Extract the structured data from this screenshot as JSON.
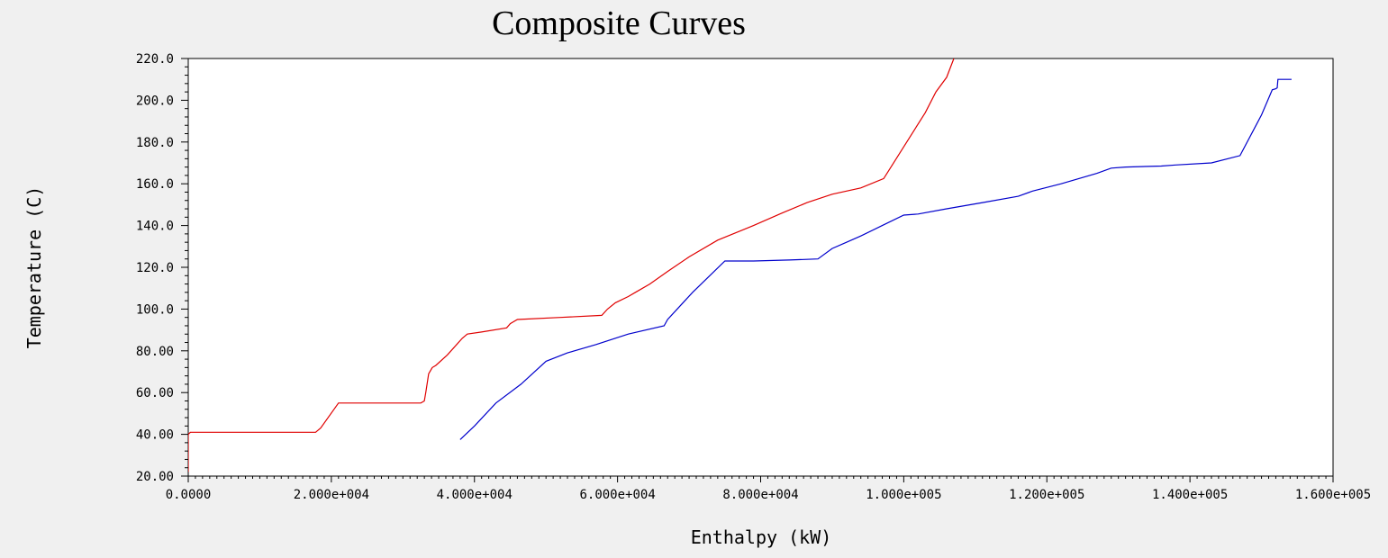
{
  "chart_data": {
    "type": "line",
    "title": "Composite Curves",
    "xlabel": "Enthalpy (kW)",
    "ylabel": "Temperature (C)",
    "xlim": [
      0,
      160000
    ],
    "ylim": [
      20,
      220
    ],
    "x_ticks": [
      0,
      20000,
      40000,
      60000,
      80000,
      100000,
      120000,
      140000,
      160000
    ],
    "x_tick_labels": [
      "0.0000",
      "2.000e+004",
      "4.000e+004",
      "6.000e+004",
      "8.000e+004",
      "1.000e+005",
      "1.200e+005",
      "1.400e+005",
      "1.600e+005"
    ],
    "y_ticks": [
      20,
      40,
      60,
      80,
      100,
      120,
      140,
      160,
      180,
      200,
      220
    ],
    "y_tick_labels": [
      "20.00",
      "40.00",
      "60.00",
      "80.00",
      "100.0",
      "120.0",
      "140.0",
      "160.0",
      "180.0",
      "200.0",
      "220.0"
    ],
    "grid": false,
    "series": [
      {
        "color": "#e00000",
        "x": [
          0,
          0,
          300,
          12000,
          17800,
          18500,
          21000,
          27000,
          32500,
          33000,
          33200,
          33600,
          34100,
          34600,
          36200,
          38300,
          39000,
          41000,
          44500,
          45000,
          46000,
          52000,
          57800,
          58600,
          59700,
          61500,
          62500,
          64500,
          67000,
          70000,
          74000,
          79000,
          83000,
          86500,
          90000,
          94000,
          97200,
          103000,
          104500,
          106000,
          107000
        ],
        "y": [
          22,
          40,
          41,
          41,
          41,
          43,
          55,
          55,
          55,
          56,
          60,
          69,
          72,
          73,
          78,
          86,
          88,
          89,
          91,
          93,
          95,
          96,
          97,
          100,
          103,
          106,
          108,
          112,
          118,
          125,
          133,
          140,
          146,
          151,
          155,
          158,
          162.5,
          194,
          204,
          211,
          220
        ]
      },
      {
        "color": "#0000cc",
        "x": [
          38000,
          40000,
          43000,
          46500,
          50000,
          53000,
          57000,
          61500,
          66500,
          67000,
          70500,
          75000,
          79000,
          84000,
          88000,
          90000,
          92000,
          94000,
          97000,
          100000,
          102000,
          106000,
          111000,
          116000,
          118000,
          122000,
          127000,
          129000,
          131000,
          136000,
          138000,
          143000,
          147000,
          150000,
          151500,
          152000,
          152200,
          152300,
          154200
        ],
        "y": [
          37.5,
          44,
          55,
          64,
          75,
          79,
          83,
          88,
          92,
          95,
          108,
          123,
          123,
          123.5,
          124,
          129,
          132,
          135,
          140,
          145,
          145.5,
          148,
          151,
          154,
          156.5,
          160,
          165,
          167.5,
          168,
          168.5,
          169,
          170,
          173.5,
          193,
          205,
          205.5,
          206,
          210,
          210
        ]
      }
    ]
  }
}
